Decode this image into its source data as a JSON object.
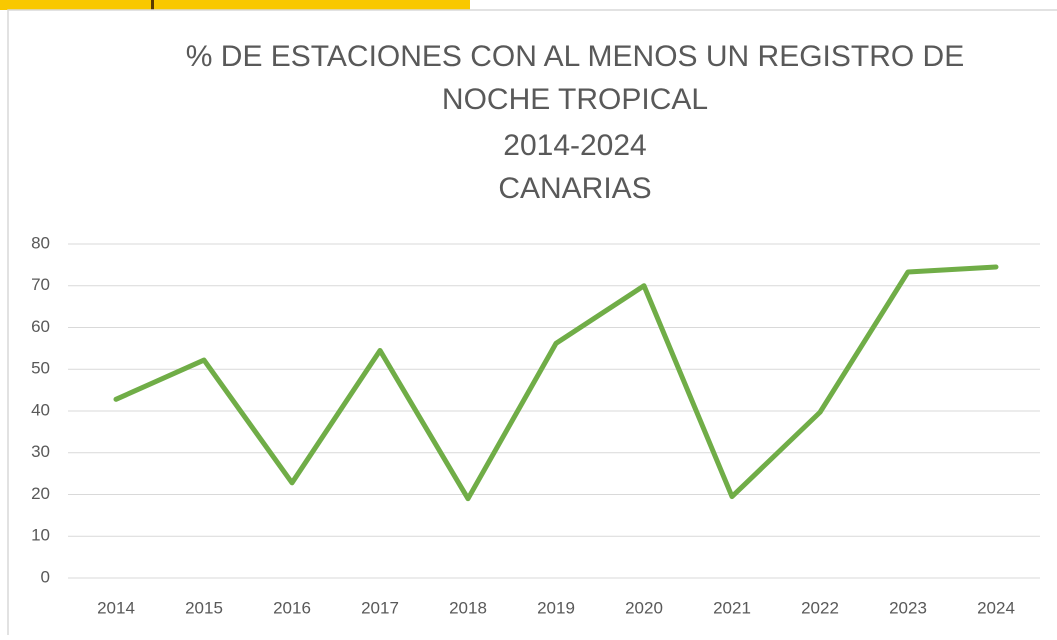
{
  "chart_data": {
    "type": "line",
    "title": [
      "% DE ESTACIONES CON AL MENOS UN REGISTRO DE",
      "NOCHE TROPICAL",
      "2014-2024",
      "CANARIAS"
    ],
    "categories": [
      "2014",
      "2015",
      "2016",
      "2017",
      "2018",
      "2019",
      "2020",
      "2021",
      "2022",
      "2023",
      "2024"
    ],
    "series": [
      {
        "color": "#70ad47",
        "values": [
          42.8,
          52.2,
          22.8,
          54.5,
          19.0,
          56.2,
          70.0,
          19.5,
          39.7,
          73.3,
          74.5
        ]
      }
    ],
    "ylim": [
      0,
      80
    ],
    "yticks": [
      0,
      10,
      20,
      30,
      40,
      50,
      60,
      70,
      80
    ],
    "grid": true
  }
}
